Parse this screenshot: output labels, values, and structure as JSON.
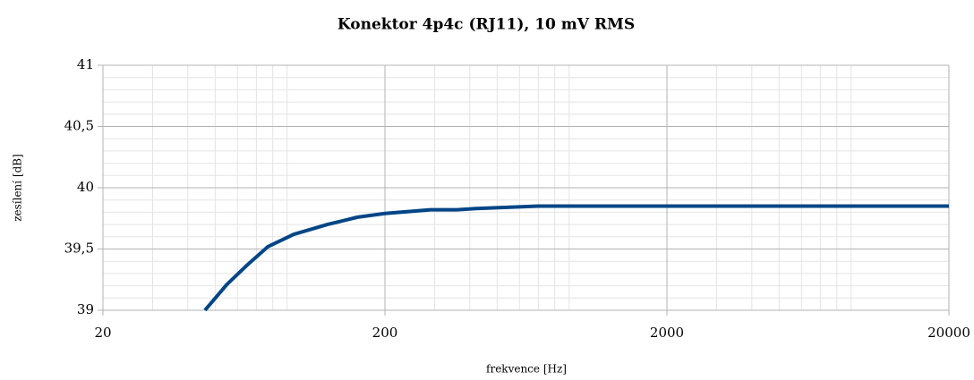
{
  "chart_data": {
    "type": "line",
    "title": "Konektor 4p4c (RJ11), 10 mV RMS",
    "x_label": "frekvence [Hz]",
    "y_label": "zesílení [dB]",
    "x_scale": "log",
    "grid": true,
    "minor_grid": true,
    "xlim": [
      20,
      20000
    ],
    "xticks": [
      20,
      200,
      2000,
      20000
    ],
    "ylim": [
      39,
      41
    ],
    "yticks": [
      39,
      {
        "value": 39.5,
        "label": "39,5"
      },
      40,
      {
        "value": 40.5,
        "label": "40,5"
      },
      41
    ],
    "series": [
      {
        "name": "zesílení",
        "color": "#004586",
        "x": [
          46,
          55,
          65,
          77,
          95,
          125,
          160,
          200,
          290,
          360,
          420,
          700,
          1000,
          2000,
          5000,
          10000,
          20000
        ],
        "values": [
          39.0,
          39.21,
          39.37,
          39.52,
          39.62,
          39.7,
          39.76,
          39.79,
          39.82,
          39.82,
          39.83,
          39.85,
          39.85,
          39.85,
          39.85,
          39.85,
          39.85
        ]
      }
    ]
  }
}
